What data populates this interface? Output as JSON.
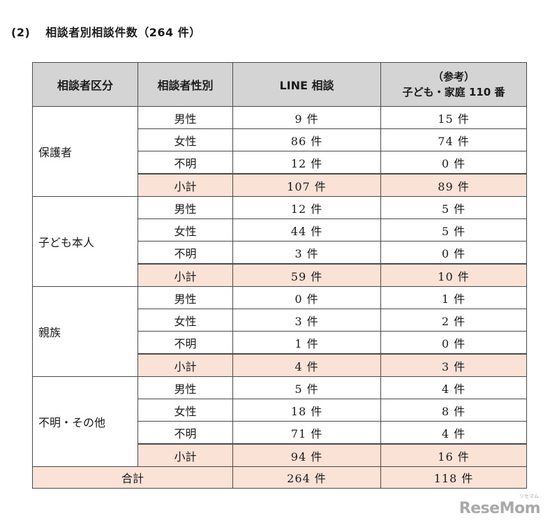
{
  "heading": {
    "number": "(2)",
    "title": "相談者別相談件数（264 件）"
  },
  "table": {
    "headers": {
      "category": "相談者区分",
      "gender": "相談者性別",
      "line": "LINE 相談",
      "ref_top": "（参考）",
      "ref_bottom": "子ども・家庭 110 番"
    },
    "groups": [
      {
        "label": "保護者",
        "rows": [
          {
            "gender": "男性",
            "line": "9 件",
            "ref": "15 件"
          },
          {
            "gender": "女性",
            "line": "86 件",
            "ref": "74 件"
          },
          {
            "gender": "不明",
            "line": "12 件",
            "ref": "0 件"
          }
        ],
        "subtotal": {
          "label": "小計",
          "line": "107 件",
          "ref": "89 件"
        }
      },
      {
        "label": "子ども本人",
        "rows": [
          {
            "gender": "男性",
            "line": "12 件",
            "ref": "5 件"
          },
          {
            "gender": "女性",
            "line": "44 件",
            "ref": "5 件"
          },
          {
            "gender": "不明",
            "line": "3 件",
            "ref": "0 件"
          }
        ],
        "subtotal": {
          "label": "小計",
          "line": "59 件",
          "ref": "10 件"
        }
      },
      {
        "label": "親族",
        "rows": [
          {
            "gender": "男性",
            "line": "0 件",
            "ref": "1 件"
          },
          {
            "gender": "女性",
            "line": "3 件",
            "ref": "2 件"
          },
          {
            "gender": "不明",
            "line": "1 件",
            "ref": "0 件"
          }
        ],
        "subtotal": {
          "label": "小計",
          "line": "4 件",
          "ref": "3 件"
        }
      },
      {
        "label": "不明・その他",
        "rows": [
          {
            "gender": "男性",
            "line": "5 件",
            "ref": "4 件"
          },
          {
            "gender": "女性",
            "line": "18 件",
            "ref": "8 件"
          },
          {
            "gender": "不明",
            "line": "71 件",
            "ref": "4 件"
          }
        ],
        "subtotal": {
          "label": "小計",
          "line": "94 件",
          "ref": "16 件"
        }
      }
    ],
    "total": {
      "label": "合計",
      "line": "264 件",
      "ref": "118 件"
    }
  },
  "watermark": {
    "text": "ReseMom",
    "small": "リセマム"
  },
  "colors": {
    "header_bg": "#d4d4d4",
    "subtotal_bg": "#fbe2d6",
    "border": "#4a4a4a"
  }
}
